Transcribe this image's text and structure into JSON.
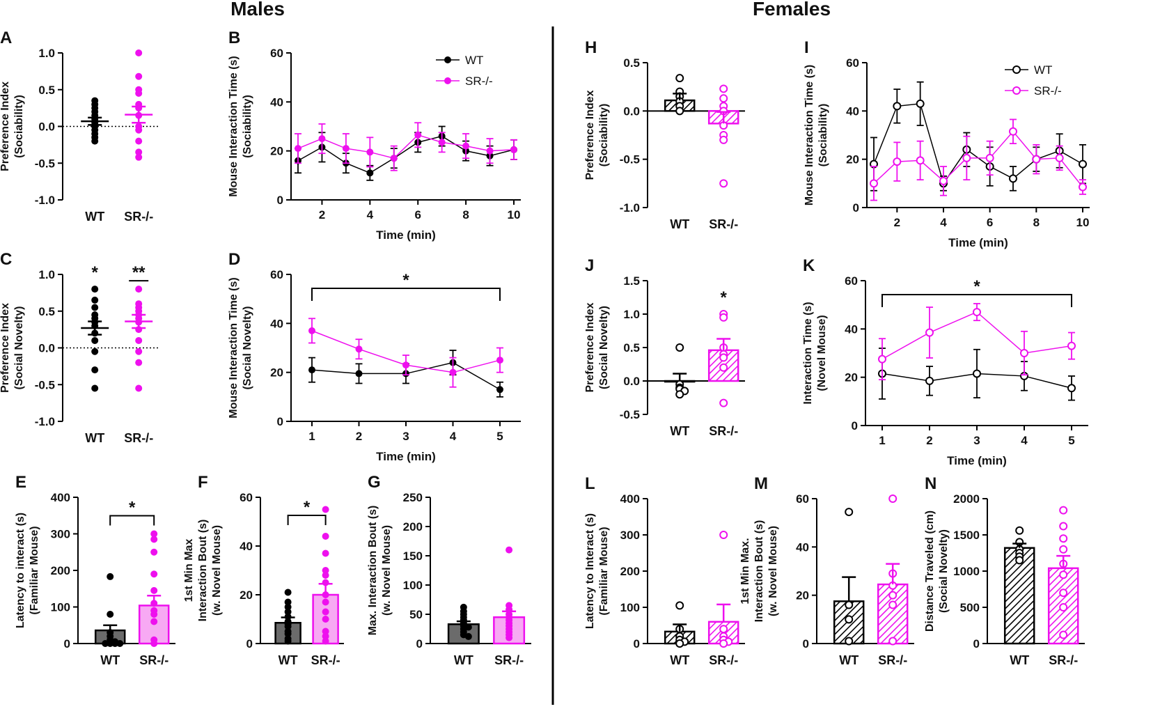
{
  "headers": {
    "males": "Males",
    "females": "Females"
  },
  "colors": {
    "wt": "#000000",
    "ko": "#ee10ee",
    "wt_bar": "#6b6b6b",
    "ko_bar": "#f7a9f3"
  },
  "legend": {
    "wt": "WT",
    "ko": "SR-/-"
  },
  "chart_data": [
    {
      "id": "A",
      "panel": "A",
      "type": "scatter",
      "marker": "filled",
      "categories": [
        "WT",
        "SR-/-"
      ],
      "ylabel": [
        "Preference Index",
        "(Sociability)"
      ],
      "ylim": [
        -1.0,
        1.0
      ],
      "yticks": [
        "1.0",
        "0.5",
        "0.0",
        "-0.5",
        "-1.0"
      ],
      "means": [
        0.07,
        0.16
      ],
      "sem": [
        0.05,
        0.11
      ],
      "zero_line": true,
      "points": [
        [
          0.35,
          0.3,
          0.25,
          0.2,
          0.15,
          0.1,
          0.05,
          0.0,
          -0.05,
          -0.1,
          -0.15,
          -0.2
        ],
        [
          1.0,
          0.68,
          0.5,
          0.45,
          0.3,
          0.25,
          0.15,
          0.0,
          -0.05,
          -0.2,
          -0.35,
          -0.42
        ]
      ]
    },
    {
      "id": "B",
      "panel": "B",
      "type": "line",
      "marker": "filled",
      "xlabel": "Time (min)",
      "ylabel": [
        "Mouse Interaction Time (s)",
        "(Sociability)"
      ],
      "xlim": [
        1,
        10
      ],
      "xticks": [
        "2",
        "4",
        "6",
        "8",
        "10"
      ],
      "ylim": [
        0,
        60
      ],
      "yticks": [
        "60",
        "40",
        "20",
        "0"
      ],
      "x": [
        1,
        2,
        3,
        4,
        5,
        6,
        7,
        8,
        9,
        10
      ],
      "legend": true,
      "series": [
        {
          "name": "WT",
          "values": [
            16,
            21.5,
            15,
            11,
            17,
            23.5,
            26,
            20,
            18,
            20.5
          ],
          "err": [
            5,
            6,
            4,
            3,
            4,
            4,
            4,
            4,
            4,
            4
          ]
        },
        {
          "name": "SR-/-",
          "values": [
            21,
            25,
            21,
            19.5,
            17,
            26.5,
            23.5,
            22,
            20,
            20.5
          ],
          "err": [
            6,
            6,
            6,
            6,
            5,
            5,
            4,
            5,
            5,
            4
          ]
        }
      ]
    },
    {
      "id": "C",
      "panel": "C",
      "type": "scatter",
      "marker": "filled",
      "categories": [
        "WT",
        "SR-/-"
      ],
      "ylabel": [
        "Preference Index",
        "(Social Novelty)"
      ],
      "ylim": [
        -1.0,
        1.0
      ],
      "yticks": [
        "1.0",
        "0.5",
        "0.0",
        "-0.5",
        "-1.0"
      ],
      "means": [
        0.27,
        0.36
      ],
      "sem": [
        0.09,
        0.09
      ],
      "zero_line": true,
      "points": [
        [
          0.8,
          0.65,
          0.55,
          0.45,
          0.4,
          0.35,
          0.3,
          0.2,
          0.1,
          -0.05,
          -0.3,
          -0.55
        ],
        [
          0.8,
          0.6,
          0.55,
          0.5,
          0.45,
          0.4,
          0.35,
          0.25,
          0.1,
          -0.05,
          -0.2,
          -0.55
        ]
      ],
      "stars": [
        "*",
        "**"
      ],
      "star_bar": [
        false,
        true
      ]
    },
    {
      "id": "D",
      "panel": "D",
      "type": "line",
      "marker": "filled",
      "xlabel": "Time (min)",
      "ylabel": [
        "Mouse Interaction Time (s)",
        "(Social Novelty)"
      ],
      "xlim": [
        1,
        5
      ],
      "xticks": [
        "1",
        "2",
        "3",
        "4",
        "5"
      ],
      "ylim": [
        0,
        60
      ],
      "yticks": [
        "60",
        "40",
        "20",
        "0"
      ],
      "x": [
        1,
        2,
        3,
        4,
        5
      ],
      "bracket": "*",
      "series": [
        {
          "name": "WT",
          "values": [
            21,
            19.5,
            19.5,
            24,
            13
          ],
          "err": [
            5,
            4,
            4,
            5,
            3
          ]
        },
        {
          "name": "SR-/-",
          "values": [
            37,
            29.5,
            23,
            20,
            25
          ],
          "err": [
            5,
            4,
            4,
            6,
            5
          ]
        }
      ]
    },
    {
      "id": "E",
      "panel": "E",
      "type": "bar",
      "style": "solid",
      "categories": [
        "WT",
        "SR-/-"
      ],
      "ylabel": [
        "Latency to interact (s)",
        "(Familiar Mouse)"
      ],
      "ylim": [
        0,
        400
      ],
      "yticks": [
        "400",
        "300",
        "200",
        "100",
        "0"
      ],
      "values": [
        36,
        104
      ],
      "err": [
        14,
        27
      ],
      "bracket": "*",
      "points": [
        [
          183,
          80,
          30,
          20,
          10,
          5,
          0,
          0,
          0,
          0
        ],
        [
          300,
          285,
          250,
          190,
          145,
          110,
          90,
          80,
          60,
          10,
          0
        ]
      ]
    },
    {
      "id": "F",
      "panel": "F",
      "type": "bar",
      "style": "solid",
      "categories": [
        "WT",
        "SR-/-"
      ],
      "ylabel": [
        "1st Min Max",
        "Interaction Bout (s)",
        "(w. Novel Mouse)"
      ],
      "ylim": [
        0,
        60
      ],
      "yticks": [
        "60",
        "40",
        "20",
        "0"
      ],
      "values": [
        8.5,
        20
      ],
      "err": [
        2.2,
        4.5
      ],
      "bracket": "*",
      "points": [
        [
          21,
          17,
          15,
          13,
          11,
          9,
          8,
          7,
          5,
          4,
          2,
          1
        ],
        [
          55,
          44,
          37,
          30,
          28,
          25,
          20,
          17,
          13,
          10,
          5,
          3,
          1
        ]
      ]
    },
    {
      "id": "G",
      "panel": "G",
      "type": "bar",
      "style": "solid",
      "categories": [
        "WT",
        "SR-/-"
      ],
      "ylabel": [
        "Max. Interaction Bout (s)",
        "(w. Novel Mouse)"
      ],
      "ylim": [
        0,
        250
      ],
      "yticks": [
        "250",
        "200",
        "150",
        "100",
        "50",
        "0"
      ],
      "values": [
        33,
        45
      ],
      "err": [
        5,
        10
      ],
      "points": [
        [
          62,
          55,
          50,
          45,
          40,
          35,
          30,
          28,
          25,
          20,
          15,
          12
        ],
        [
          160,
          65,
          58,
          50,
          45,
          40,
          35,
          30,
          25,
          20,
          15,
          10
        ]
      ]
    },
    {
      "id": "H",
      "panel": "H",
      "type": "bar",
      "style": "hatched",
      "categories": [
        "WT",
        "SR-/-"
      ],
      "ylabel": [
        "Preference Index",
        "(Sociability)"
      ],
      "ylim": [
        -1.0,
        0.5
      ],
      "yticks": [
        "0.5",
        "0.0",
        "-0.5",
        "-1.0"
      ],
      "values": [
        0.11,
        -0.13
      ],
      "err": [
        0.07,
        0.12
      ],
      "zero_line": true,
      "points": [
        [
          0.34,
          0.2,
          0.15,
          0.1,
          0.05,
          0.0
        ],
        [
          0.23,
          0.13,
          0.05,
          0.0,
          -0.15,
          -0.25,
          -0.3,
          -0.75
        ]
      ]
    },
    {
      "id": "I",
      "panel": "I",
      "type": "line",
      "marker": "open",
      "xlabel": "Time (min)",
      "ylabel": [
        "Mouse Interaction Time (s)",
        "(Sociability)"
      ],
      "xlim": [
        1,
        10
      ],
      "xticks": [
        "2",
        "4",
        "6",
        "8",
        "10"
      ],
      "ylim": [
        0,
        60
      ],
      "yticks": [
        "60",
        "40",
        "20",
        "0"
      ],
      "x": [
        1,
        2,
        3,
        4,
        5,
        6,
        7,
        8,
        9,
        10
      ],
      "legend": true,
      "series": [
        {
          "name": "WT",
          "values": [
            18,
            42,
            43,
            10,
            24,
            17,
            12,
            20,
            23.5,
            18
          ],
          "err": [
            11,
            7,
            9,
            3,
            7,
            8,
            5,
            5,
            7,
            8
          ]
        },
        {
          "name": "SR-/-",
          "values": [
            10,
            19,
            19.5,
            11,
            20.5,
            20.5,
            31.5,
            20,
            20.5,
            8.5
          ],
          "err": [
            7,
            8,
            8,
            6,
            9,
            7,
            5,
            6,
            5,
            3
          ]
        }
      ]
    },
    {
      "id": "J",
      "panel": "J",
      "type": "bar",
      "style": "hatched",
      "categories": [
        "WT",
        "SR-/-"
      ],
      "ylabel": [
        "Preference Index",
        "(Social Novelty)"
      ],
      "ylim": [
        -0.5,
        1.5
      ],
      "yticks": [
        "1.5",
        "1.0",
        "0.5",
        "0.0",
        "-0.5"
      ],
      "values": [
        0.0,
        0.46
      ],
      "err": [
        0.11,
        0.17
      ],
      "zero_line": true,
      "stars": [
        "",
        "*"
      ],
      "points": [
        [
          0.5,
          -0.05,
          -0.1,
          -0.12,
          -0.15,
          -0.2
        ],
        [
          1.0,
          0.95,
          0.5,
          0.4,
          0.35,
          0.2,
          -0.33
        ]
      ]
    },
    {
      "id": "K",
      "panel": "K",
      "type": "line",
      "marker": "open",
      "xlabel": "Time (min)",
      "ylabel": [
        "Interaction Time (s)",
        "(Novel Mouse)"
      ],
      "xlim": [
        1,
        5
      ],
      "xticks": [
        "1",
        "2",
        "3",
        "4",
        "5"
      ],
      "ylim": [
        0,
        60
      ],
      "yticks": [
        "60",
        "40",
        "20",
        "0"
      ],
      "x": [
        1,
        2,
        3,
        4,
        5
      ],
      "bracket": "*",
      "series": [
        {
          "name": "WT",
          "values": [
            21.5,
            18.5,
            21.5,
            20.5,
            15.5
          ],
          "err": [
            10.5,
            6,
            10,
            6,
            5
          ]
        },
        {
          "name": "SR-/-",
          "values": [
            27.5,
            38.5,
            47,
            30,
            33
          ],
          "err": [
            8.5,
            10.5,
            3.5,
            9,
            5.5
          ]
        }
      ]
    },
    {
      "id": "L",
      "panel": "L",
      "type": "bar",
      "style": "hatched",
      "categories": [
        "WT",
        "SR-/-"
      ],
      "ylabel": [
        "Latency to Interact (s)",
        "(Familiar Mouse)"
      ],
      "ylim": [
        0,
        400
      ],
      "yticks": [
        "400",
        "300",
        "200",
        "100",
        "0"
      ],
      "values": [
        33,
        60
      ],
      "err": [
        20,
        48
      ],
      "points": [
        [
          105,
          40,
          20,
          10,
          5,
          0
        ],
        [
          300,
          40,
          20,
          10,
          5,
          0
        ]
      ]
    },
    {
      "id": "M",
      "panel": "M",
      "type": "bar",
      "style": "hatched",
      "categories": [
        "WT",
        "SR-/-"
      ],
      "ylabel": [
        "1st Min Max.",
        "Interaction Bout (s)",
        "(w. Novel Mouse)"
      ],
      "ylim": [
        0,
        60
      ],
      "yticks": [
        "60",
        "40",
        "20",
        "0"
      ],
      "values": [
        17.5,
        24.5
      ],
      "err": [
        10,
        8.5
      ],
      "points": [
        [
          54.5,
          16,
          10,
          1
        ],
        [
          60,
          29,
          24,
          20,
          16,
          1
        ]
      ]
    },
    {
      "id": "N",
      "panel": "N",
      "type": "bar",
      "style": "hatched",
      "categories": [
        "WT",
        "SR-/-"
      ],
      "ylabel": [
        "Distance Traveled (cm)",
        "(Social Novelty)"
      ],
      "ylim": [
        0,
        2000
      ],
      "yticks": [
        "2000",
        "1500",
        "1000",
        "500",
        "0"
      ],
      "values": [
        1320,
        1040
      ],
      "err": [
        60,
        170
      ],
      "points": [
        [
          1560,
          1400,
          1300,
          1250,
          1200,
          1150
        ],
        [
          1840,
          1620,
          1450,
          1300,
          1100,
          950,
          700,
          500,
          120
        ]
      ]
    }
  ]
}
